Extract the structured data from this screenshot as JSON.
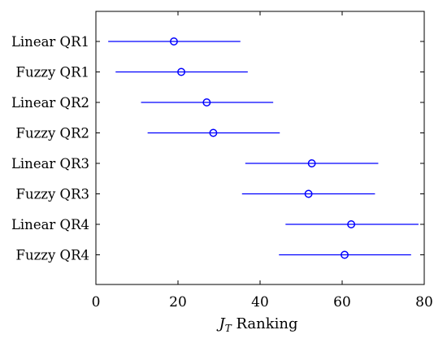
{
  "chart_data": {
    "type": "scatter",
    "title": "",
    "xlabel_main": "J",
    "xlabel_sub": "T",
    "xlabel_rest": " Ranking",
    "ylabel": "",
    "xlim": [
      0,
      80
    ],
    "x_ticks": [
      "0",
      "20",
      "40",
      "60",
      "80"
    ],
    "x_tick_values": [
      0,
      20,
      40,
      60,
      80
    ],
    "grid": false,
    "marker_color": "#0000ff",
    "categories": [
      "Linear QR1",
      "Fuzzy QR1",
      "Linear QR2",
      "Fuzzy QR2",
      "Linear QR3",
      "Fuzzy QR3",
      "Linear QR4",
      "Fuzzy QR4"
    ],
    "points": [
      {
        "label": "Linear QR1",
        "center": 19.0,
        "low": 3.0,
        "high": 35.2
      },
      {
        "label": "Fuzzy QR1",
        "center": 20.8,
        "low": 4.8,
        "high": 37.0
      },
      {
        "label": "Linear QR2",
        "center": 27.0,
        "low": 11.0,
        "high": 43.2
      },
      {
        "label": "Fuzzy QR2",
        "center": 28.6,
        "low": 12.6,
        "high": 44.8
      },
      {
        "label": "Linear QR3",
        "center": 52.6,
        "low": 36.4,
        "high": 68.8
      },
      {
        "label": "Fuzzy QR3",
        "center": 51.8,
        "low": 35.6,
        "high": 68.0
      },
      {
        "label": "Linear QR4",
        "center": 62.2,
        "low": 46.2,
        "high": 78.6
      },
      {
        "label": "Fuzzy QR4",
        "center": 60.6,
        "low": 44.6,
        "high": 76.8
      }
    ]
  }
}
